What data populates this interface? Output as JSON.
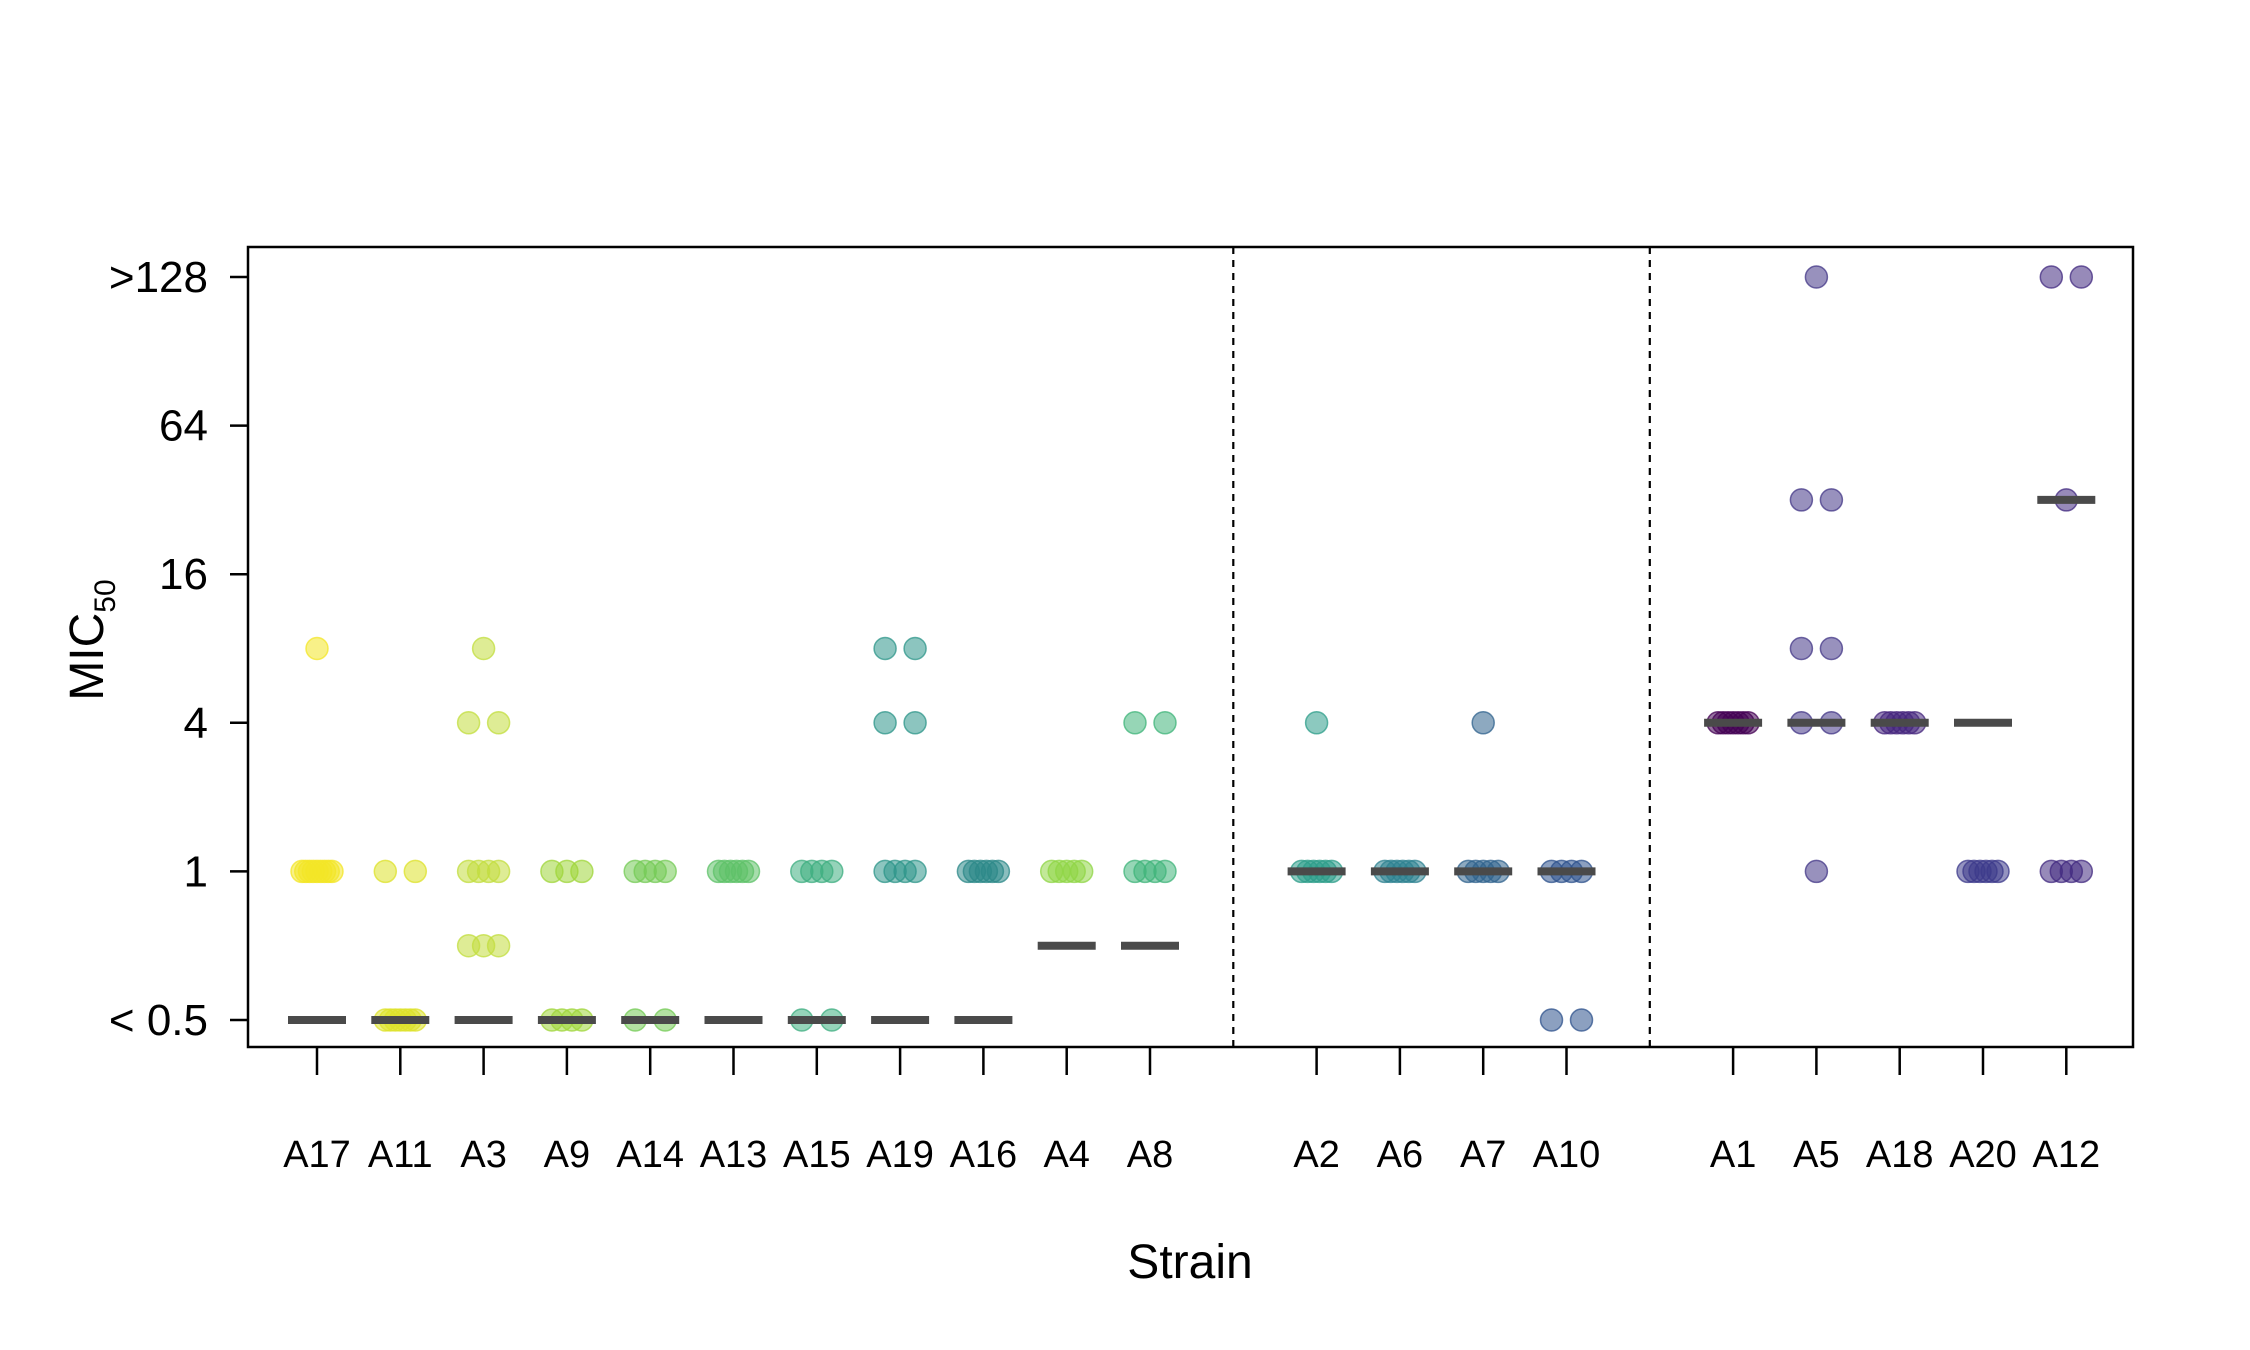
{
  "chart_data": {
    "type": "scatter",
    "title": "",
    "xlabel": "Strain",
    "ylabel": "MIC",
    "ylabel_subscript": "50",
    "y_scale": "log2",
    "y_ticks": [
      {
        "value": 0.25,
        "label": "< 0.5"
      },
      {
        "value": 1,
        "label": "1"
      },
      {
        "value": 4,
        "label": "4"
      },
      {
        "value": 16,
        "label": "16"
      },
      {
        "value": 64,
        "label": "64"
      },
      {
        "value": 256,
        "label": ">128"
      }
    ],
    "ylim": [
      0.25,
      256
    ],
    "grid": false,
    "legend": "none",
    "group_separators_after": [
      "A8",
      "A10"
    ],
    "categories": [
      "A17",
      "A11",
      "A3",
      "A9",
      "A14",
      "A13",
      "A15",
      "A19",
      "A16",
      "A4",
      "A8",
      "A2",
      "A6",
      "A7",
      "A10",
      "A1",
      "A5",
      "A18",
      "A20",
      "A12"
    ],
    "colors": [
      "#F3E527",
      "#DDE22A",
      "#C2DD3E",
      "#9FD63A",
      "#74CB55",
      "#5EC168",
      "#3EAE80",
      "#2D968A",
      "#2C8888",
      "#8FD646",
      "#3FB47A",
      "#2E9D8A",
      "#2E8190",
      "#30638D",
      "#2E528C",
      "#440154",
      "#433787",
      "#46267E",
      "#3C3A8B",
      "#412A80"
    ],
    "medians": [
      0.25,
      0.25,
      0.25,
      0.25,
      0.25,
      0.25,
      0.25,
      0.25,
      0.25,
      0.5,
      0.5,
      1,
      1,
      1,
      1,
      4,
      4,
      4,
      4,
      32
    ],
    "points": [
      [
        8,
        1,
        1,
        1,
        1,
        1,
        1,
        1,
        1,
        1
      ],
      [
        1,
        1,
        0.25,
        0.25,
        0.25,
        0.25,
        0.25,
        0.25,
        0.25
      ],
      [
        8,
        4,
        4,
        1,
        1,
        1,
        1,
        0.5,
        0.5,
        0.5
      ],
      [
        1,
        1,
        1,
        0.25,
        0.25,
        0.25,
        0.25
      ],
      [
        1,
        1,
        1,
        1,
        0.25,
        0.25
      ],
      [
        1,
        1,
        1,
        1,
        1,
        1
      ],
      [
        1,
        1,
        1,
        1,
        0.25,
        0.25
      ],
      [
        8,
        8,
        4,
        4,
        1,
        1,
        1,
        1
      ],
      [
        1,
        1,
        1,
        1,
        1,
        1
      ],
      [
        1,
        1,
        1,
        1,
        1
      ],
      [
        4,
        4,
        1,
        1,
        1,
        1
      ],
      [
        4,
        1,
        1,
        1,
        1,
        1,
        1
      ],
      [
        1,
        1,
        1,
        1,
        1,
        1
      ],
      [
        4,
        1,
        1,
        1,
        1,
        1
      ],
      [
        1,
        1,
        1,
        1,
        0.25,
        0.25
      ],
      [
        4,
        4,
        4,
        4,
        4,
        4,
        4
      ],
      [
        256,
        32,
        32,
        8,
        8,
        4,
        4,
        1
      ],
      [
        4,
        4,
        4,
        4,
        4,
        4
      ],
      [
        1,
        1,
        1,
        1,
        1,
        1
      ],
      [
        256,
        256,
        32,
        1,
        1,
        1,
        1
      ]
    ]
  }
}
